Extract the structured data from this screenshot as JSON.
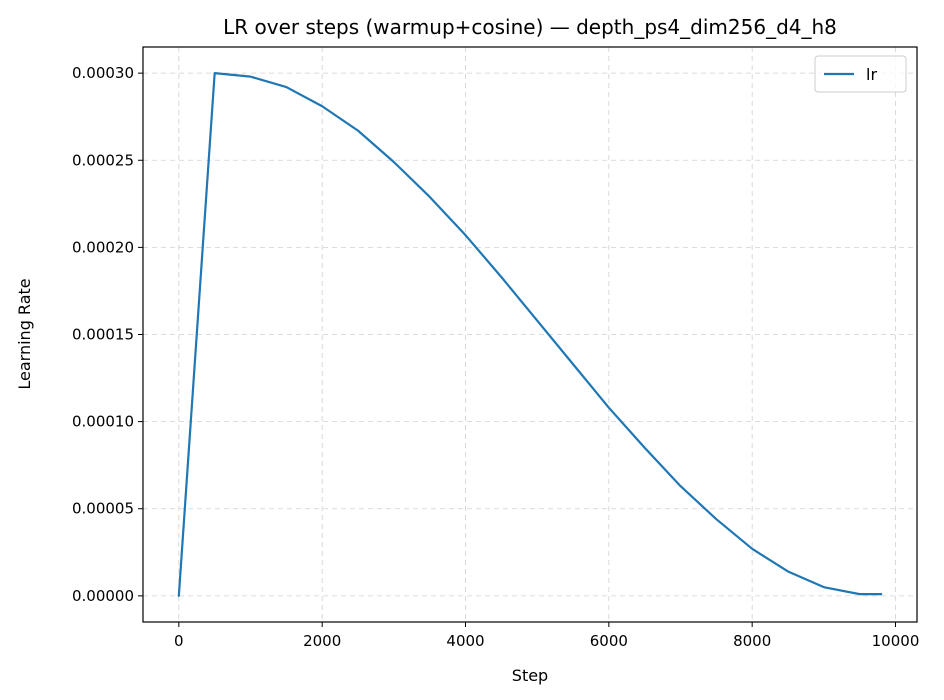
{
  "chart_data": {
    "type": "line",
    "title": "LR over steps (warmup+cosine) — depth_ps4_dim256_d4_h8",
    "xlabel": "Step",
    "ylabel": "Learning Rate",
    "xlim": [
      -500,
      10300
    ],
    "ylim": [
      -1.5e-05,
      0.000315
    ],
    "xticks": [
      0,
      2000,
      4000,
      6000,
      8000,
      10000
    ],
    "xtick_labels": [
      "0",
      "2000",
      "4000",
      "6000",
      "8000",
      "10000"
    ],
    "yticks": [
      0,
      5e-05,
      0.0001,
      0.00015,
      0.0002,
      0.00025,
      0.0003
    ],
    "ytick_labels": [
      "0.00000",
      "0.00005",
      "0.00010",
      "0.00015",
      "0.00020",
      "0.00025",
      "0.00030"
    ],
    "grid": true,
    "legend_position": "top-right",
    "series": [
      {
        "name": "lr",
        "color": "#1f77b4",
        "x": [
          0,
          500,
          1000,
          1500,
          2000,
          2500,
          3000,
          3500,
          4000,
          4500,
          5000,
          5500,
          6000,
          6500,
          7000,
          7500,
          8000,
          8500,
          9000,
          9500,
          9800
        ],
        "y": [
          0.0,
          0.0003,
          0.000298,
          0.000292,
          0.000281,
          0.000267,
          0.000249,
          0.000229,
          0.000207,
          0.000183,
          0.000158,
          0.000133,
          0.000108,
          8.5e-05,
          6.3e-05,
          4.4e-05,
          2.7e-05,
          1.4e-05,
          5e-06,
          1e-06,
          1e-06
        ]
      }
    ]
  }
}
